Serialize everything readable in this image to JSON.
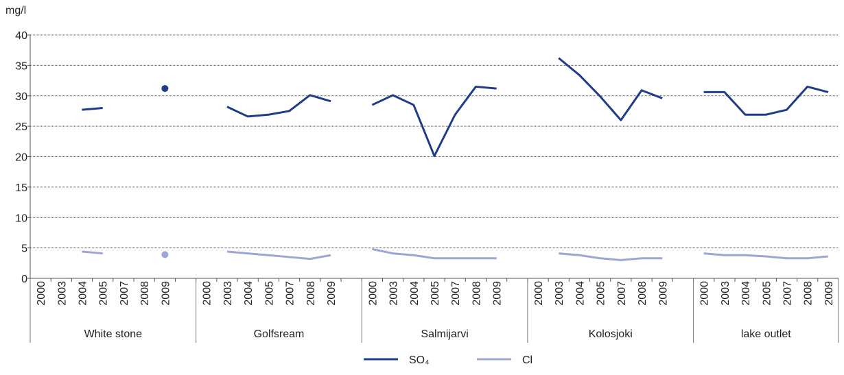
{
  "chart_data": {
    "type": "line",
    "y_label": "mg/l",
    "categories": [
      "2000",
      "2003",
      "2004",
      "2005",
      "2007",
      "2008",
      "2009",
      null,
      "2000",
      "2003",
      "2004",
      "2005",
      "2007",
      "2008",
      "2009",
      null,
      "2000",
      "2003",
      "2004",
      "2005",
      "2007",
      "2008",
      "2009",
      null,
      "2000",
      "2003",
      "2004",
      "2005",
      "2007",
      "2008",
      "2009",
      null,
      "2000",
      "2003",
      "2004",
      "2005",
      "2007",
      "2008",
      "2009"
    ],
    "group_labels": [
      "White stone",
      "Golfsream",
      "Salmijarvi",
      "Kolosjoki",
      "lake outlet"
    ],
    "series": [
      {
        "name": "SO₄",
        "color": "#1f3c88",
        "values": [
          null,
          null,
          27.7,
          28.0,
          null,
          null,
          31.2,
          null,
          null,
          28.2,
          26.6,
          26.9,
          27.5,
          30.1,
          29.1,
          null,
          28.5,
          30.1,
          28.5,
          20.1,
          26.9,
          31.5,
          31.2,
          null,
          null,
          36.2,
          33.4,
          29.9,
          26.0,
          30.9,
          29.6,
          null,
          30.6,
          30.6,
          26.9,
          26.9,
          27.7,
          31.5,
          30.6
        ]
      },
      {
        "name": "Cl",
        "color": "#9ea6d6",
        "values": [
          null,
          null,
          4.4,
          4.1,
          null,
          null,
          3.9,
          null,
          null,
          4.4,
          4.1,
          3.8,
          3.5,
          3.2,
          3.8,
          null,
          4.8,
          4.1,
          3.8,
          3.3,
          3.3,
          3.3,
          3.3,
          null,
          null,
          4.1,
          3.8,
          3.3,
          3.0,
          3.3,
          3.3,
          null,
          4.1,
          3.8,
          3.8,
          3.6,
          3.3,
          3.3,
          3.6
        ]
      }
    ],
    "ylim": [
      0,
      40
    ],
    "yticks": [
      0,
      5,
      10,
      15,
      20,
      25,
      30,
      35,
      40
    ],
    "grid": true
  }
}
